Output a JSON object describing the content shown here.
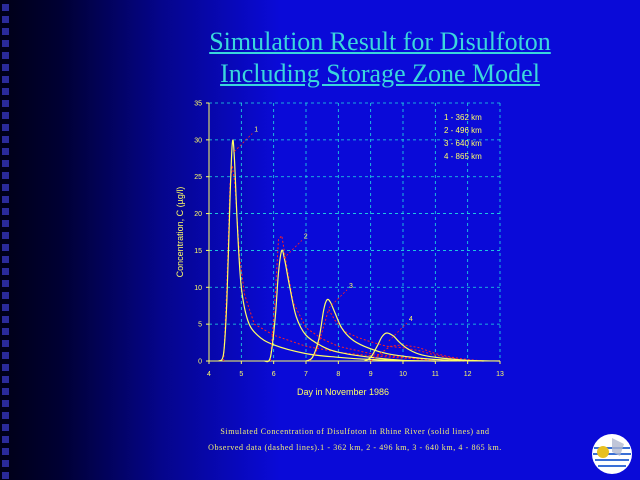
{
  "slide": {
    "title_line1": "Simulation Result for Disulfoton",
    "title_line2": "Including Storage Zone Model",
    "caption_line1": "Simulated Concentration of Disulfoton in Rhine River (solid lines) and",
    "caption_line2": "Observed data (dashed lines).1 - 362 km, 2 - 496 km, 3 - 640 km, 4 - 865 km."
  },
  "colors": {
    "background": "#0a0ad8",
    "title": "#3ad7dc",
    "axis": "#ffff66",
    "simulated": "#ffff66",
    "observed": "#ff2020",
    "grid": "#20e0e0"
  },
  "chart_data": {
    "type": "line",
    "title": "",
    "xlabel": "Day in November 1986",
    "ylabel": "Concentration, C (µg/l)",
    "xlim": [
      4,
      13
    ],
    "ylim": [
      0,
      35
    ],
    "x_ticks": [
      4,
      5,
      6,
      7,
      8,
      9,
      10,
      11,
      12,
      13
    ],
    "y_ticks": [
      0,
      5,
      10,
      15,
      20,
      25,
      30,
      35
    ],
    "grid": true,
    "legend_position": "top-right",
    "legend": [
      "1 - 362 km",
      "2 - 496 km",
      "3 - 640 km",
      "4 - 865 km"
    ],
    "series": [
      {
        "label": "1",
        "simulated": [
          [
            4.3,
            0
          ],
          [
            4.45,
            1
          ],
          [
            4.55,
            8
          ],
          [
            4.65,
            22
          ],
          [
            4.72,
            29.5
          ],
          [
            4.78,
            28
          ],
          [
            4.88,
            18
          ],
          [
            5.0,
            10
          ],
          [
            5.2,
            5.5
          ],
          [
            5.5,
            3.5
          ],
          [
            6.0,
            2.2
          ],
          [
            7.0,
            1.0
          ],
          [
            8.0,
            0.5
          ],
          [
            9.0,
            0.2
          ],
          [
            10.0,
            0.05
          ],
          [
            11.0,
            0
          ]
        ],
        "observed": [
          [
            4.45,
            0
          ],
          [
            4.55,
            10
          ],
          [
            4.65,
            24
          ],
          [
            4.72,
            26.5
          ],
          [
            4.8,
            24
          ],
          [
            4.95,
            14
          ],
          [
            5.1,
            9
          ],
          [
            5.4,
            5
          ],
          [
            6.0,
            3.5
          ],
          [
            7.0,
            2
          ],
          [
            8.0,
            1.2
          ],
          [
            9.0,
            0.7
          ],
          [
            10.0,
            0.4
          ],
          [
            11.0,
            0.2
          ],
          [
            12.0,
            0
          ]
        ]
      },
      {
        "label": "2",
        "simulated": [
          [
            5.7,
            0
          ],
          [
            5.9,
            0.5
          ],
          [
            6.05,
            6
          ],
          [
            6.15,
            12
          ],
          [
            6.25,
            15
          ],
          [
            6.35,
            13.5
          ],
          [
            6.5,
            10
          ],
          [
            6.7,
            6
          ],
          [
            7.0,
            3.5
          ],
          [
            7.5,
            2.0
          ],
          [
            8.0,
            1.2
          ],
          [
            9.0,
            0.5
          ],
          [
            10.0,
            0.1
          ],
          [
            11.0,
            0
          ]
        ],
        "observed": [
          [
            5.9,
            0
          ],
          [
            6.05,
            9
          ],
          [
            6.15,
            16.5
          ],
          [
            6.25,
            17
          ],
          [
            6.4,
            13
          ],
          [
            6.6,
            8
          ],
          [
            7.0,
            4.5
          ],
          [
            7.5,
            3
          ],
          [
            8.0,
            2
          ],
          [
            9.0,
            1
          ],
          [
            10.0,
            0.5
          ],
          [
            11.0,
            0
          ]
        ]
      },
      {
        "label": "3",
        "simulated": [
          [
            7.0,
            0
          ],
          [
            7.2,
            0.5
          ],
          [
            7.4,
            3
          ],
          [
            7.55,
            7
          ],
          [
            7.65,
            8.3
          ],
          [
            7.75,
            8
          ],
          [
            7.9,
            6.5
          ],
          [
            8.1,
            4.5
          ],
          [
            8.4,
            3
          ],
          [
            8.8,
            2
          ],
          [
            9.5,
            1
          ],
          [
            10.5,
            0.4
          ],
          [
            11.5,
            0.1
          ],
          [
            12.5,
            0
          ]
        ],
        "observed": [
          [
            7.1,
            0
          ],
          [
            7.3,
            1
          ],
          [
            7.5,
            4
          ],
          [
            7.7,
            7
          ],
          [
            7.9,
            5.5
          ],
          [
            8.2,
            4
          ],
          [
            8.6,
            3.2
          ],
          [
            9.0,
            2.6
          ],
          [
            9.5,
            2
          ],
          [
            10.0,
            1.8
          ],
          [
            10.5,
            1.4
          ],
          [
            11.0,
            0.8
          ],
          [
            12.0,
            0
          ]
        ]
      },
      {
        "label": "4",
        "simulated": [
          [
            8.8,
            0
          ],
          [
            9.0,
            0.5
          ],
          [
            9.2,
            2
          ],
          [
            9.35,
            3.3
          ],
          [
            9.5,
            3.8
          ],
          [
            9.7,
            3.4
          ],
          [
            9.9,
            2.5
          ],
          [
            10.2,
            1.5
          ],
          [
            10.6,
            0.8
          ],
          [
            11.2,
            0.4
          ],
          [
            12.0,
            0.1
          ],
          [
            13.0,
            0
          ]
        ],
        "observed": [
          [
            9.0,
            0
          ],
          [
            9.3,
            1
          ],
          [
            9.6,
            2
          ],
          [
            10.0,
            2.2
          ],
          [
            10.5,
            1.8
          ],
          [
            11.0,
            1
          ],
          [
            11.5,
            0.5
          ],
          [
            12.0,
            0.2
          ],
          [
            12.5,
            0
          ]
        ]
      }
    ]
  }
}
